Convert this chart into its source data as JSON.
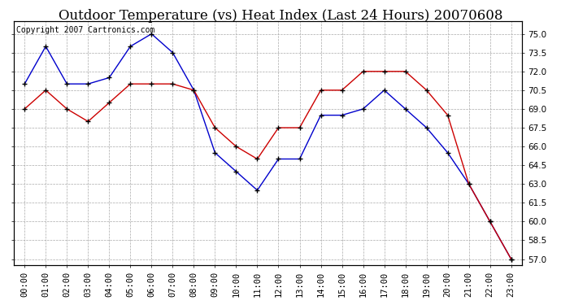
{
  "title": "Outdoor Temperature (vs) Heat Index (Last 24 Hours) 20070608",
  "copyright_text": "Copyright 2007 Cartronics.com",
  "hours": [
    "00:00",
    "01:00",
    "02:00",
    "03:00",
    "04:00",
    "05:00",
    "06:00",
    "07:00",
    "08:00",
    "09:00",
    "10:00",
    "11:00",
    "12:00",
    "13:00",
    "14:00",
    "15:00",
    "16:00",
    "17:00",
    "18:00",
    "19:00",
    "20:00",
    "21:00",
    "22:00",
    "23:00"
  ],
  "temp_blue": [
    71.0,
    74.0,
    71.0,
    71.0,
    71.5,
    74.0,
    75.0,
    73.5,
    70.5,
    65.5,
    64.0,
    62.5,
    65.0,
    65.0,
    68.5,
    68.5,
    69.0,
    70.5,
    69.0,
    67.5,
    65.5,
    63.0,
    60.0,
    57.0
  ],
  "heat_red": [
    69.0,
    70.5,
    69.0,
    68.0,
    69.5,
    71.0,
    71.0,
    71.0,
    70.5,
    67.5,
    66.0,
    65.0,
    67.5,
    67.5,
    70.5,
    70.5,
    72.0,
    72.0,
    72.0,
    70.5,
    68.5,
    63.0,
    60.0,
    57.0
  ],
  "ylim": [
    56.5,
    76.0
  ],
  "yticks": [
    57.0,
    58.5,
    60.0,
    61.5,
    63.0,
    64.5,
    66.0,
    67.5,
    69.0,
    70.5,
    72.0,
    73.5,
    75.0
  ],
  "blue_color": "#0000cc",
  "red_color": "#cc0000",
  "bg_color": "#ffffff",
  "grid_color": "#aaaaaa",
  "title_fontsize": 12,
  "tick_fontsize": 7.5,
  "copyright_fontsize": 7
}
